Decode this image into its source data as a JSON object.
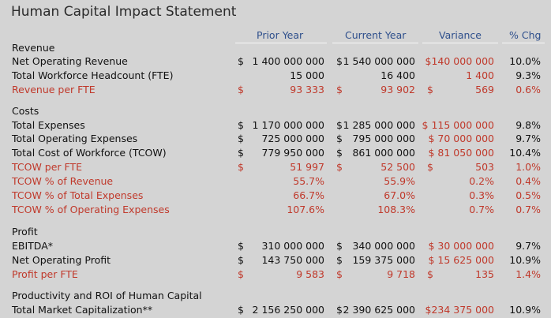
{
  "title": "Human Capital Impact Statement",
  "columns": {
    "prior_year": "Prior Year",
    "current_year": "Current Year",
    "variance": "Variance",
    "pct_chg": "% Chg"
  },
  "rows": [
    {
      "label": "Revenue",
      "kind": "section"
    },
    {
      "label": "Net Operating Revenue",
      "kind": "normal",
      "py_sym": "$",
      "py": "1 400 000 000",
      "cy_sym": "$",
      "cy": "1 540 000 000",
      "var_sym": "",
      "var": "$140 000 000",
      "pct": "10.0%"
    },
    {
      "label": "Total Workforce Headcount (FTE)",
      "kind": "normal",
      "py_sym": "",
      "py": "15 000",
      "cy_sym": "",
      "cy": "16 400",
      "var_sym": "",
      "var": "1 400",
      "pct": "9.3%"
    },
    {
      "label": "Revenue per FTE",
      "kind": "red",
      "py_sym": "$",
      "py": "93 333",
      "cy_sym": "$",
      "cy": "93 902",
      "var_sym": "$",
      "var": "569",
      "pct": "0.6%"
    },
    {
      "label": "Costs",
      "kind": "section"
    },
    {
      "label": "Total Expenses",
      "kind": "normal",
      "py_sym": "$",
      "py": "1 170 000 000",
      "cy_sym": "$",
      "cy": "1 285 000 000",
      "var_sym": "",
      "var": "$ 115 000 000",
      "pct": "9.8%"
    },
    {
      "label": "Total Operating Expenses",
      "kind": "normal",
      "py_sym": "$",
      "py": "725 000 000",
      "cy_sym": "$",
      "cy": "795 000 000",
      "var_sym": "",
      "var": "$ 70 000 000",
      "pct": "9.7%"
    },
    {
      "label": "Total Cost of Workforce (TCOW)",
      "kind": "normal",
      "py_sym": "$",
      "py": "779 950 000",
      "cy_sym": "$",
      "cy": "861 000 000",
      "var_sym": "",
      "var": "$ 81 050 000",
      "pct": "10.4%"
    },
    {
      "label": "TCOW per FTE",
      "kind": "red",
      "py_sym": "$",
      "py": "51 997",
      "cy_sym": "$",
      "cy": "52 500",
      "var_sym": "$",
      "var": "503",
      "pct": "1.0%"
    },
    {
      "label": "TCOW % of Revenue",
      "kind": "red",
      "py_sym": "",
      "py": "55.7%",
      "cy_sym": "",
      "cy": "55.9%",
      "var_sym": "",
      "var": "0.2%",
      "pct": "0.4%"
    },
    {
      "label": "TCOW % of Total Expenses",
      "kind": "red",
      "py_sym": "",
      "py": "66.7%",
      "cy_sym": "",
      "cy": "67.0%",
      "var_sym": "",
      "var": "0.3%",
      "pct": "0.5%"
    },
    {
      "label": "TCOW % of Operating Expenses",
      "kind": "red",
      "py_sym": "",
      "py": "107.6%",
      "cy_sym": "",
      "cy": "108.3%",
      "var_sym": "",
      "var": "0.7%",
      "pct": "0.7%"
    },
    {
      "label": "Profit",
      "kind": "section"
    },
    {
      "label": "EBITDA*",
      "kind": "normal",
      "py_sym": "$",
      "py": "310 000 000",
      "cy_sym": "$",
      "cy": "340 000 000",
      "var_sym": "",
      "var": "$ 30 000 000",
      "pct": "9.7%"
    },
    {
      "label": "Net Operating Profit",
      "kind": "normal",
      "py_sym": "$",
      "py": "143 750 000",
      "cy_sym": "$",
      "cy": "159 375 000",
      "var_sym": "",
      "var": "$ 15 625 000",
      "pct": "10.9%"
    },
    {
      "label": "Profit per FTE",
      "kind": "red",
      "py_sym": "$",
      "py": "9 583",
      "cy_sym": "$",
      "cy": "9 718",
      "var_sym": "$",
      "var": "135",
      "pct": "1.4%"
    },
    {
      "label": "Productivity and ROI of Human Capital",
      "kind": "section"
    },
    {
      "label": "Total Market Capitalization**",
      "kind": "normal",
      "py_sym": "$",
      "py": "2 156 250 000",
      "cy_sym": "$",
      "cy": "2 390 625 000",
      "var_sym": "",
      "var": "$234 375 000",
      "pct": "10.9%"
    }
  ]
}
